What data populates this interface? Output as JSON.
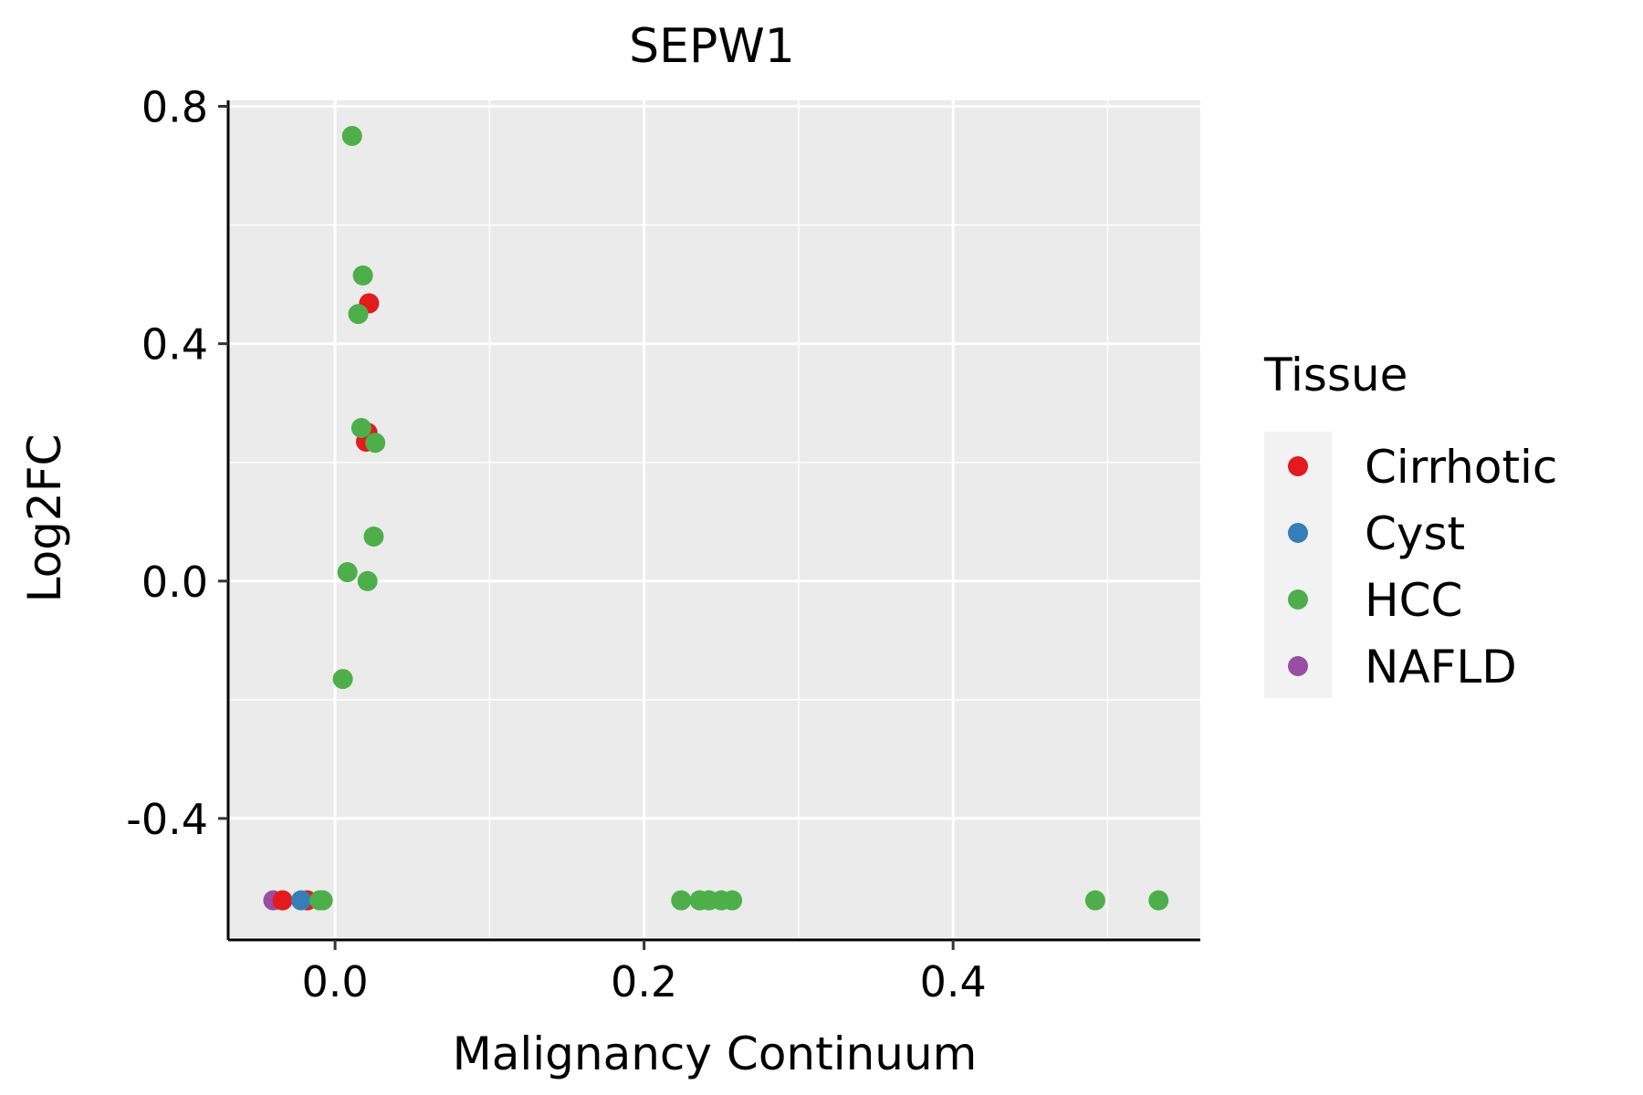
{
  "chart_data": {
    "type": "scatter",
    "title": "SEPW1",
    "xlabel": "Malignancy Continuum",
    "ylabel": "Log2FC",
    "xlim": [
      -0.068,
      0.56
    ],
    "ylim": [
      -0.6,
      0.81
    ],
    "x_ticks": [
      0.0,
      0.2,
      0.4
    ],
    "x_tick_labels": [
      "0.0",
      "0.2",
      "0.4"
    ],
    "y_ticks": [
      -0.4,
      0.0,
      0.4,
      0.8
    ],
    "y_tick_labels": [
      "-0.4",
      "0.0",
      "0.4",
      "0.8"
    ],
    "grid": true,
    "legend": {
      "title": "Tissue",
      "position": "right",
      "entries": [
        {
          "name": "Cirrhotic",
          "color": "#E41A1C"
        },
        {
          "name": "Cyst",
          "color": "#377EB8"
        },
        {
          "name": "HCC",
          "color": "#4DAF4A"
        },
        {
          "name": "NAFLD",
          "color": "#984EA3"
        }
      ]
    },
    "series": [
      {
        "name": "NAFLD",
        "color": "#984EA3",
        "points": [
          {
            "x": -0.04,
            "y": -0.538
          }
        ]
      },
      {
        "name": "Cirrhotic",
        "color": "#E41A1C",
        "points": [
          {
            "x": -0.034,
            "y": -0.538
          },
          {
            "x": -0.018,
            "y": -0.538
          },
          {
            "x": 0.022,
            "y": 0.468
          },
          {
            "x": 0.021,
            "y": 0.25
          },
          {
            "x": 0.02,
            "y": 0.235
          }
        ]
      },
      {
        "name": "Cyst",
        "color": "#377EB8",
        "points": [
          {
            "x": -0.022,
            "y": -0.538
          }
        ]
      },
      {
        "name": "HCC",
        "color": "#4DAF4A",
        "points": [
          {
            "x": -0.01,
            "y": -0.538
          },
          {
            "x": -0.008,
            "y": -0.538
          },
          {
            "x": 0.011,
            "y": 0.75
          },
          {
            "x": 0.018,
            "y": 0.515
          },
          {
            "x": 0.015,
            "y": 0.45
          },
          {
            "x": 0.017,
            "y": 0.258
          },
          {
            "x": 0.026,
            "y": 0.233
          },
          {
            "x": 0.025,
            "y": 0.075
          },
          {
            "x": 0.008,
            "y": 0.015
          },
          {
            "x": 0.021,
            "y": 0.0
          },
          {
            "x": 0.005,
            "y": -0.165
          },
          {
            "x": 0.224,
            "y": -0.538
          },
          {
            "x": 0.236,
            "y": -0.538
          },
          {
            "x": 0.242,
            "y": -0.538
          },
          {
            "x": 0.25,
            "y": -0.538
          },
          {
            "x": 0.257,
            "y": -0.538
          },
          {
            "x": 0.492,
            "y": -0.538
          },
          {
            "x": 0.533,
            "y": -0.538
          }
        ]
      }
    ]
  }
}
